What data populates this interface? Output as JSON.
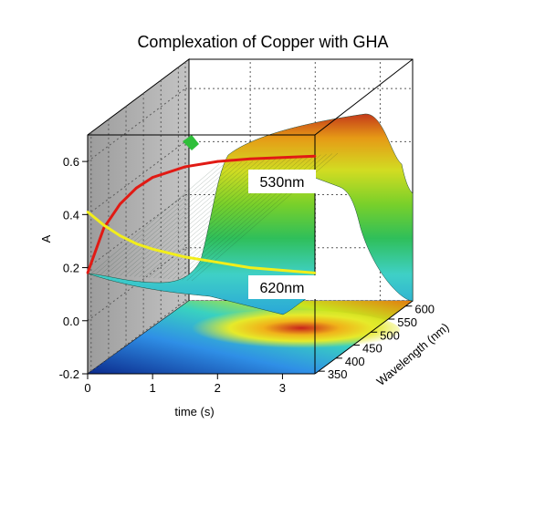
{
  "chart_data": {
    "type": "surface3d",
    "title": "Complexation of Copper with GHA",
    "xlabel": "time (s)",
    "ylabel": "Wavelength (nm)",
    "zlabel": "A",
    "x_ticks": [
      "0",
      "1",
      "2",
      "3"
    ],
    "y_ticks": [
      "350",
      "400",
      "450",
      "500",
      "550",
      "600"
    ],
    "z_ticks": [
      "0.6",
      "0.4",
      "0.2",
      "0.0",
      "-0.2"
    ],
    "xlim": [
      0,
      3.5
    ],
    "ylim": [
      340,
      620
    ],
    "zlim": [
      -0.2,
      0.7
    ],
    "grid": true,
    "colormap": [
      "#0b2a8c",
      "#1f7be0",
      "#35c7c9",
      "#36c23d",
      "#d7e21a",
      "#e8a400",
      "#c1221d"
    ],
    "series": [
      {
        "name": "530nm",
        "color": "#e11a14",
        "x": [
          0,
          0.25,
          0.5,
          0.75,
          1,
          1.5,
          2,
          2.5,
          3,
          3.5
        ],
        "y": [
          0.18,
          0.35,
          0.44,
          0.5,
          0.54,
          0.58,
          0.6,
          0.61,
          0.615,
          0.62
        ]
      },
      {
        "name": "620nm",
        "color": "#f2ee1a",
        "x": [
          0,
          0.25,
          0.5,
          0.75,
          1,
          1.5,
          2,
          2.5,
          3,
          3.5
        ],
        "y": [
          0.41,
          0.36,
          0.32,
          0.29,
          0.27,
          0.24,
          0.22,
          0.2,
          0.19,
          0.18
        ]
      }
    ]
  }
}
